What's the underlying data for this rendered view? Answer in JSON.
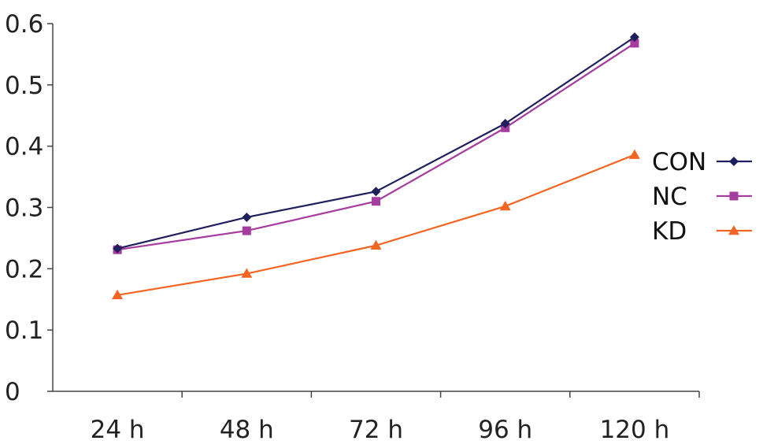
{
  "chart_data": {
    "type": "line",
    "title": "",
    "xlabel": "",
    "ylabel": "",
    "categories": [
      "24 h",
      "48 h",
      "72 h",
      "96 h",
      "120 h"
    ],
    "ylim": [
      0,
      0.6
    ],
    "yticks": [
      "0",
      "0.1",
      "0.2",
      "0.3",
      "0.4",
      "0.5",
      "0.6"
    ],
    "grid": false,
    "legend_position": "right",
    "series": [
      {
        "name": "CON",
        "values": [
          0.233,
          0.284,
          0.326,
          0.437,
          0.578
        ],
        "color": "#1f1f5c",
        "marker": "diamond"
      },
      {
        "name": "NC",
        "values": [
          0.231,
          0.262,
          0.31,
          0.43,
          0.568
        ],
        "color": "#a53c9e",
        "marker": "square"
      },
      {
        "name": "KD",
        "values": [
          0.157,
          0.192,
          0.238,
          0.302,
          0.386
        ],
        "color": "#f26522",
        "marker": "triangle"
      }
    ]
  }
}
